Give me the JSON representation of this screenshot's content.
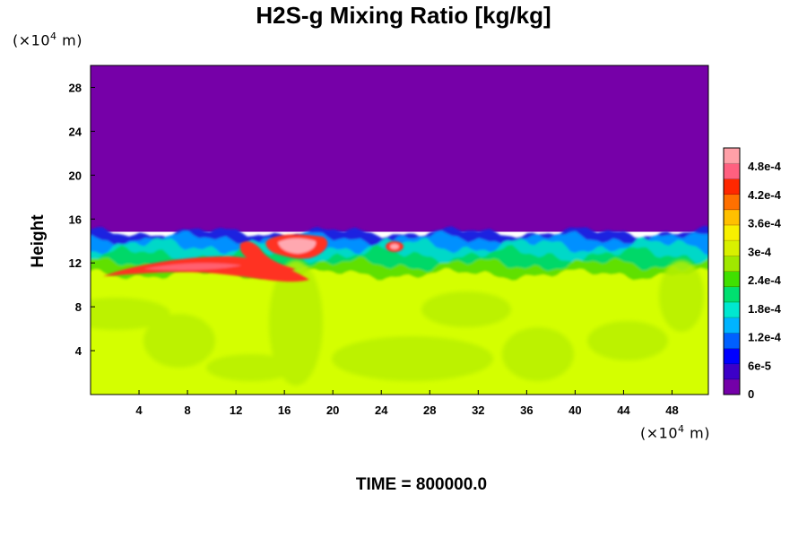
{
  "chart_data": {
    "type": "heatmap",
    "title": "H2S-g Mixing Ratio [kg/kg]",
    "ylabel": "Height",
    "xlabel": "",
    "x_unit_prefix": "(×10",
    "x_unit_exp": "4",
    "x_unit_suffix": " m)",
    "y_unit_prefix": "(×10",
    "y_unit_exp": "4",
    "y_unit_suffix": " m)",
    "xlim": [
      0,
      51
    ],
    "ylim": [
      0,
      30
    ],
    "x_ticks": [
      4,
      8,
      12,
      16,
      20,
      24,
      28,
      32,
      36,
      40,
      44,
      48
    ],
    "x_tick_labels": [
      "4",
      "8",
      "12",
      "16",
      "20",
      "24",
      "28",
      "32",
      "36",
      "40",
      "44",
      "48"
    ],
    "y_ticks": [
      4,
      8,
      12,
      16,
      20,
      24,
      28
    ],
    "y_tick_labels": [
      "4",
      "8",
      "12",
      "16",
      "20",
      "24",
      "28"
    ],
    "colorbar": {
      "min": 0,
      "max": 0.00052,
      "tick_values": [
        0,
        6e-05,
        0.00012,
        0.00018,
        0.00024,
        0.0003,
        0.00036,
        0.00042,
        0.00048
      ],
      "tick_labels": [
        "0",
        "6e-5",
        "1.2e-4",
        "1.8e-4",
        "2.4e-4",
        "3e-4",
        "3.6e-4",
        "4.2e-4",
        "4.8e-4"
      ],
      "colors": [
        "#7400a8",
        "#3c00c8",
        "#0000ff",
        "#0060ff",
        "#00b4ff",
        "#00e8d0",
        "#00e070",
        "#40e000",
        "#a0e800",
        "#d8f000",
        "#f8f000",
        "#ffc000",
        "#ff7000",
        "#ff2800",
        "#ff6080",
        "#ffa0a8"
      ]
    },
    "regions": [
      {
        "desc": "lower layer",
        "x": [
          0,
          51
        ],
        "y": [
          0,
          10.5
        ],
        "value": 0.00034
      },
      {
        "desc": "upper layer",
        "x": [
          0,
          51
        ],
        "y": [
          15,
          30
        ],
        "value": 0.0
      }
    ],
    "colors": {
      "upper": "#7600a8",
      "lower": "#d4ff00",
      "lower_dark": "#b8f000"
    }
  },
  "footer": {
    "time_label": "TIME = 800000.0"
  }
}
